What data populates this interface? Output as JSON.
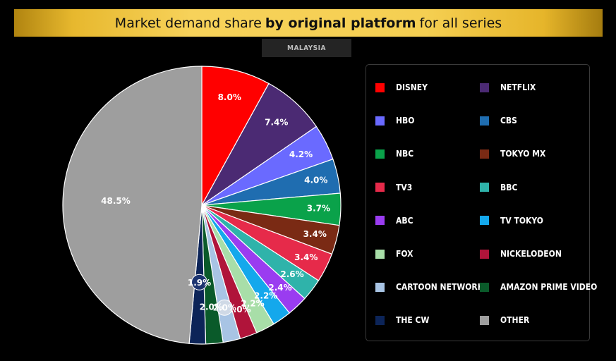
{
  "header": {
    "title_pre": "Market demand share",
    "title_bold": "by original platform",
    "title_post": "for all series",
    "region": "MALAYSIA"
  },
  "chart_data": {
    "type": "pie",
    "title": "Market demand share by original platform for all series",
    "subtitle": "MALAYSIA",
    "start_angle": "12 o'clock",
    "direction": "clockwise",
    "legend_position": "right",
    "slices": [
      {
        "label": "DISNEY",
        "value": 8.0,
        "display": "8.0%",
        "color": "#ff0000"
      },
      {
        "label": "NETFLIX",
        "value": 7.4,
        "display": "7.4%",
        "color": "#4b2a73"
      },
      {
        "label": "HBO",
        "value": 4.2,
        "display": "4.2%",
        "color": "#6a6aff"
      },
      {
        "label": "CBS",
        "value": 4.0,
        "display": "4.0%",
        "color": "#1f6db0"
      },
      {
        "label": "NBC",
        "value": 3.7,
        "display": "3.7%",
        "color": "#0aa24a"
      },
      {
        "label": "TOKYO MX",
        "value": 3.4,
        "display": "3.4%",
        "color": "#7a2a14"
      },
      {
        "label": "TV3",
        "value": 3.4,
        "display": "3.4%",
        "color": "#e62a4a"
      },
      {
        "label": "BBC",
        "value": 2.6,
        "display": "2.6%",
        "color": "#2fb3aa"
      },
      {
        "label": "ABC",
        "value": 2.4,
        "display": "2.4%",
        "color": "#9a3cf0"
      },
      {
        "label": "TV TOKYO",
        "value": 2.2,
        "display": "2.2%",
        "color": "#14a8ec"
      },
      {
        "label": "FOX",
        "value": 2.2,
        "display": "2.2%",
        "color": "#a8dea8"
      },
      {
        "label": "NICKELODEON",
        "value": 2.0,
        "display": "2.0%",
        "color": "#b0143a"
      },
      {
        "label": "CARTOON NETWORK",
        "value": 2.0,
        "display": "2.0%",
        "color": "#a8c4e4"
      },
      {
        "label": "AMAZON PRIME VIDEO",
        "value": 2.0,
        "display": "2.0%",
        "color": "#0a5a2a"
      },
      {
        "label": "THE CW",
        "value": 1.9,
        "display": "1.9%",
        "color": "#0c2458"
      },
      {
        "label": "OTHER",
        "value": 48.5,
        "display": "48.5%",
        "color": "#9e9e9e"
      }
    ]
  },
  "legend": {
    "items": [
      {
        "label": "DISNEY",
        "color": "#ff0000"
      },
      {
        "label": "NETFLIX",
        "color": "#4b2a73"
      },
      {
        "label": "HBO",
        "color": "#6a6aff"
      },
      {
        "label": "CBS",
        "color": "#1f6db0"
      },
      {
        "label": "NBC",
        "color": "#0aa24a"
      },
      {
        "label": "TOKYO MX",
        "color": "#7a2a14"
      },
      {
        "label": "TV3",
        "color": "#e62a4a"
      },
      {
        "label": "BBC",
        "color": "#2fb3aa"
      },
      {
        "label": "ABC",
        "color": "#9a3cf0"
      },
      {
        "label": "TV TOKYO",
        "color": "#14a8ec"
      },
      {
        "label": "FOX",
        "color": "#a8dea8"
      },
      {
        "label": "NICKELODEON",
        "color": "#b0143a"
      },
      {
        "label": "CARTOON NETWORK",
        "color": "#a8c4e4"
      },
      {
        "label": "AMAZON PRIME VIDEO",
        "color": "#0a5a2a"
      },
      {
        "label": "THE CW",
        "color": "#0c2458"
      },
      {
        "label": "OTHER",
        "color": "#9e9e9e"
      }
    ]
  }
}
